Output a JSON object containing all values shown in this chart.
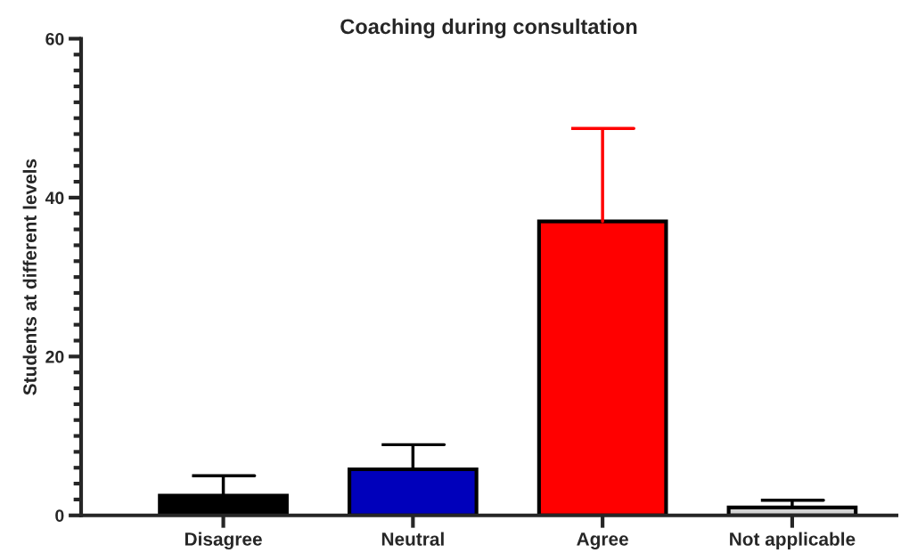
{
  "chart_data": {
    "type": "bar",
    "title": "Coaching during consultation",
    "ylabel": "Students at different levels",
    "categories": [
      "Disagree",
      "Neutral",
      "Agree",
      "Not applicable"
    ],
    "values": [
      2.5,
      5.8,
      37.0,
      1.0
    ],
    "errors": [
      [
        2.5,
        5.0
      ],
      [
        5.8,
        8.9
      ],
      [
        37.0,
        48.7
      ],
      [
        1.0,
        1.9
      ]
    ],
    "colors": [
      "#000000",
      "#0000bb",
      "#ff0000",
      "#d3d3d3"
    ],
    "ylim": [
      0,
      60
    ],
    "yticks": [
      0,
      20,
      40,
      60
    ],
    "grid": false,
    "legend": false
  }
}
